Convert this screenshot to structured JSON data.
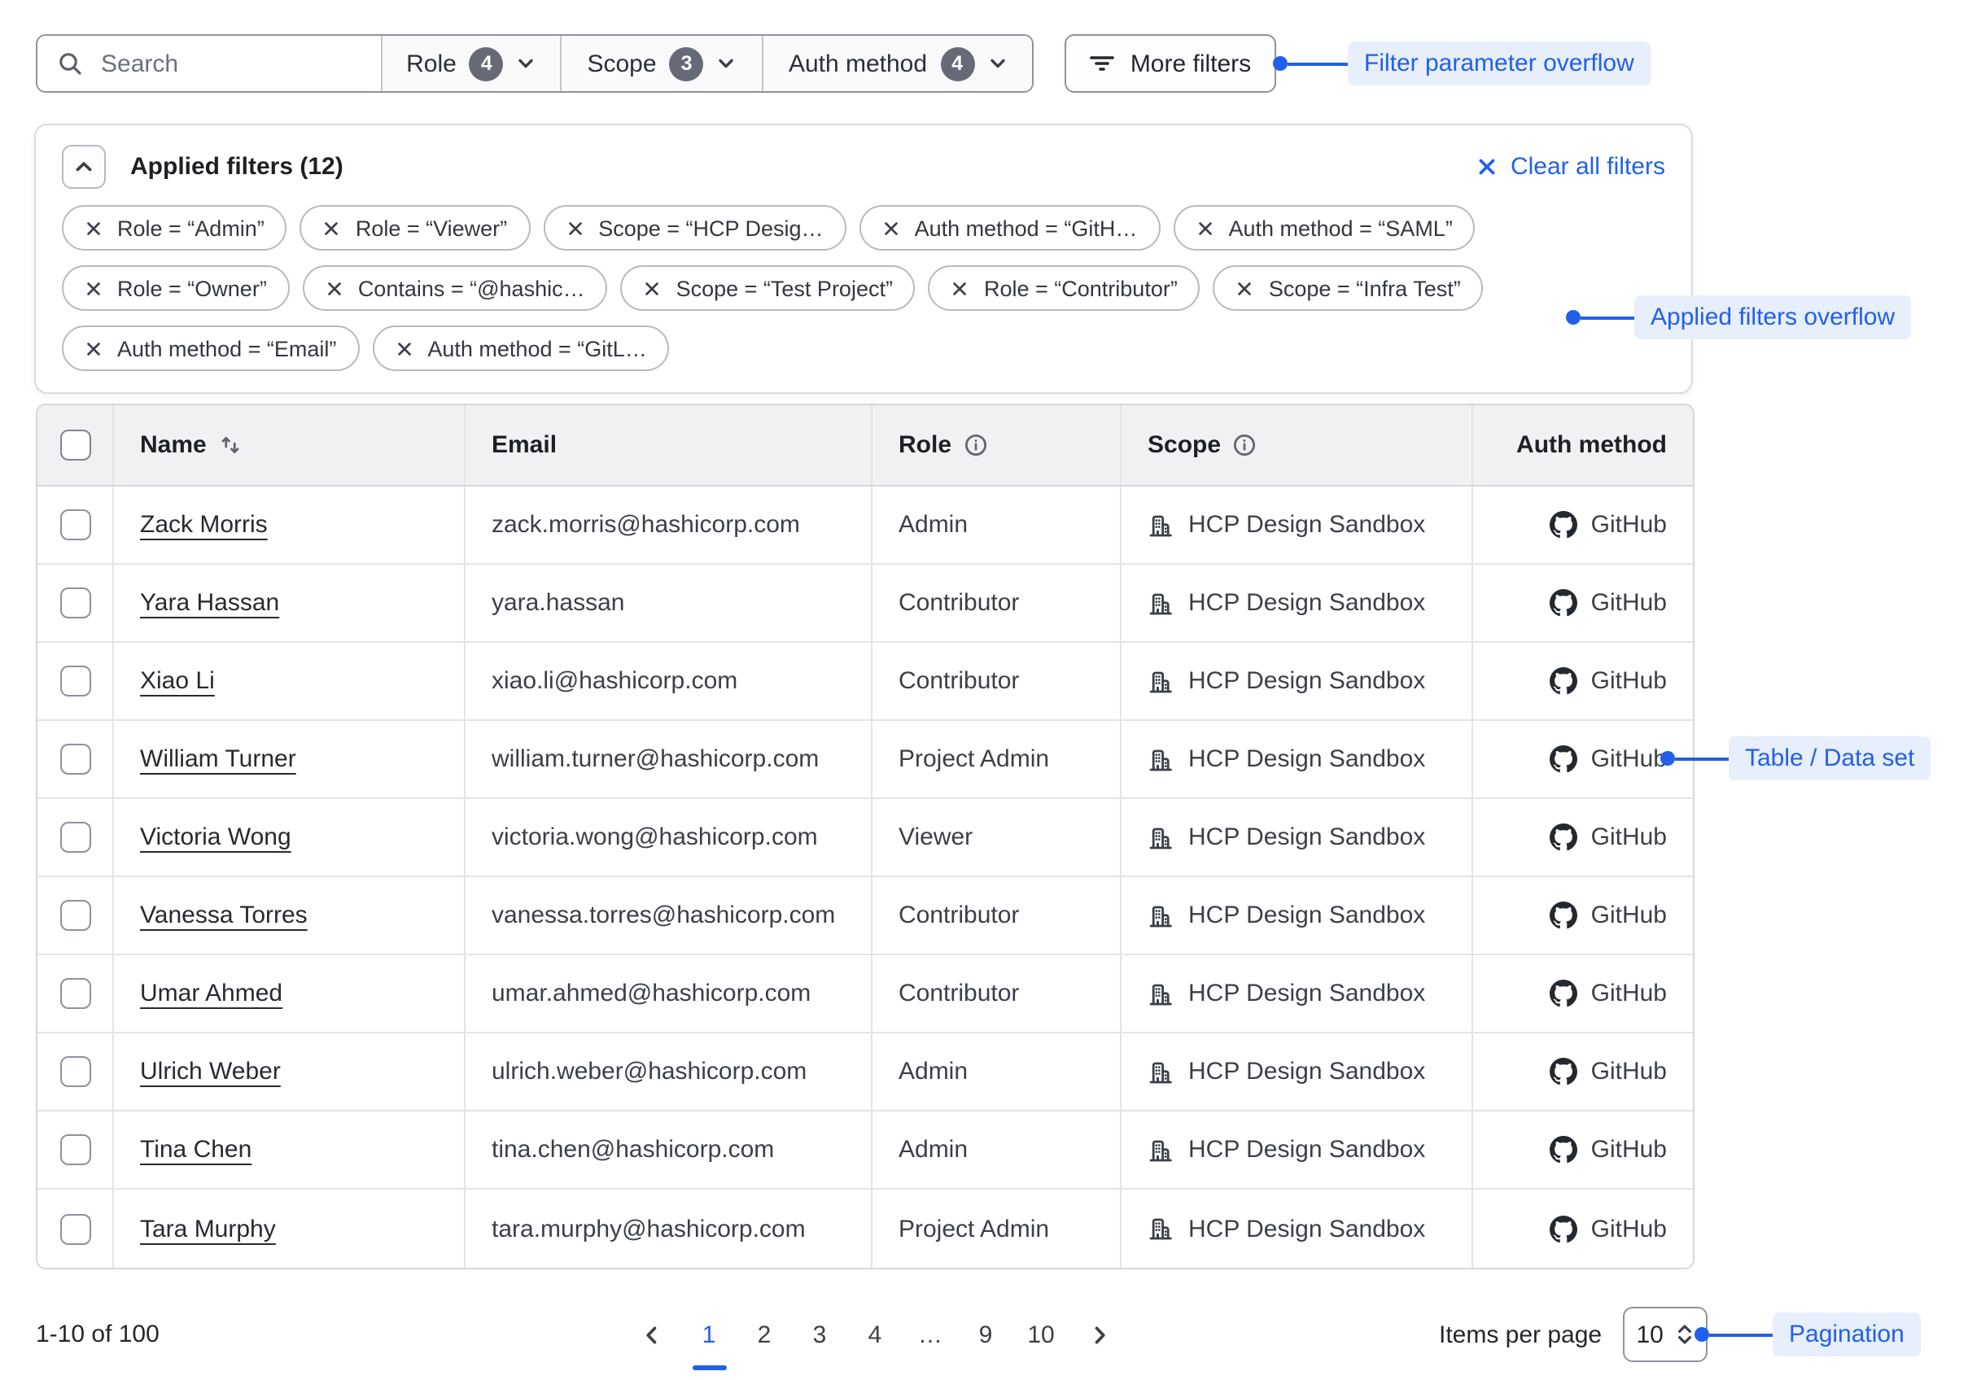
{
  "filter_bar": {
    "search": {
      "placeholder": "Search"
    },
    "dropdowns": [
      {
        "label": "Role",
        "count": "4"
      },
      {
        "label": "Scope",
        "count": "3"
      },
      {
        "label": "Auth method",
        "count": "4"
      }
    ],
    "more_filters_label": "More filters"
  },
  "annotations": {
    "filter_overflow": "Filter parameter overflow",
    "applied_overflow": "Applied filters overflow",
    "table": "Table / Data set",
    "pagination": "Pagination"
  },
  "applied_filters": {
    "title": "Applied filters (12)",
    "clear_label": "Clear all filters",
    "chip_rows": [
      [
        "Role = “Admin”",
        "Role = “Viewer”",
        "Scope = “HCP Desig…",
        "Auth method = “GitH…",
        "Auth method = “SAML”"
      ],
      [
        "Role = “Owner”",
        "Contains = “@hashic…",
        "Scope = “Test Project”",
        "Role = “Contributor”",
        "Scope = “Infra Test”"
      ],
      [
        "Auth method = “Email”",
        "Auth method = “GitL…"
      ]
    ]
  },
  "table": {
    "columns": {
      "name": "Name",
      "email": "Email",
      "role": "Role",
      "scope": "Scope",
      "auth": "Auth method"
    },
    "rows": [
      {
        "name": "Zack Morris",
        "email": "zack.morris@hashicorp.com",
        "role": "Admin",
        "scope": "HCP Design Sandbox",
        "auth": "GitHub"
      },
      {
        "name": "Yara Hassan",
        "email": "yara.hassan",
        "role": "Contributor",
        "scope": "HCP Design Sandbox",
        "auth": "GitHub"
      },
      {
        "name": "Xiao Li",
        "email": "xiao.li@hashicorp.com",
        "role": "Contributor",
        "scope": "HCP Design Sandbox",
        "auth": "GitHub"
      },
      {
        "name": "William Turner",
        "email": "william.turner@hashicorp.com",
        "role": "Project Admin",
        "scope": "HCP Design Sandbox",
        "auth": "GitHub"
      },
      {
        "name": "Victoria Wong",
        "email": "victoria.wong@hashicorp.com",
        "role": "Viewer",
        "scope": "HCP Design Sandbox",
        "auth": "GitHub"
      },
      {
        "name": "Vanessa Torres",
        "email": "vanessa.torres@hashicorp.com",
        "role": "Contributor",
        "scope": "HCP Design Sandbox",
        "auth": "GitHub"
      },
      {
        "name": "Umar Ahmed",
        "email": "umar.ahmed@hashicorp.com",
        "role": "Contributor",
        "scope": "HCP Design Sandbox",
        "auth": "GitHub"
      },
      {
        "name": "Ulrich Weber",
        "email": "ulrich.weber@hashicorp.com",
        "role": "Admin",
        "scope": "HCP Design Sandbox",
        "auth": "GitHub"
      },
      {
        "name": "Tina Chen",
        "email": "tina.chen@hashicorp.com",
        "role": "Admin",
        "scope": "HCP Design Sandbox",
        "auth": "GitHub"
      },
      {
        "name": "Tara Murphy",
        "email": "tara.murphy@hashicorp.com",
        "role": "Project Admin",
        "scope": "HCP Design Sandbox",
        "auth": "GitHub"
      }
    ]
  },
  "pagination": {
    "range_label": "1-10 of 100",
    "pages": [
      "1",
      "2",
      "3",
      "4",
      "…",
      "9",
      "10"
    ],
    "current_page": "1",
    "items_per_page_label": "Items per page",
    "items_per_page_value": "10"
  },
  "colors": {
    "accent_blue": "#2160eb",
    "annotation_bg": "#e7eefc",
    "badge_bg": "#656a76",
    "header_bg": "#f1f1f3"
  },
  "icons": {
    "search": "search-icon",
    "chevron_down": "chevron-down-icon",
    "filter": "filter-lines-icon",
    "collapse": "chevron-up-icon",
    "clear": "x-icon",
    "sort": "sort-arrows-icon",
    "info": "info-circle-icon",
    "scope": "building-icon",
    "auth": "github-icon",
    "prev": "chevron-left-icon",
    "next": "chevron-right-icon",
    "stepper": "up-down-stepper-icon"
  }
}
